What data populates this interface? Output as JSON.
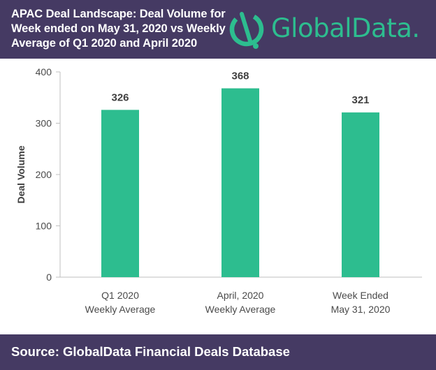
{
  "header": {
    "title_lines": [
      "APAC Deal Landscape: Deal Volume for",
      "Week ended on May 31, 2020 vs Weekly",
      "Average of Q1 2020 and April 2020"
    ],
    "logo_text": "GlobalData.",
    "logo_icon": "globaldata-logo-icon",
    "background_color": "#453a63",
    "accent_color": "#2dbd8f"
  },
  "footer": {
    "source": "Source: GlobalData Financial Deals Database"
  },
  "chart_data": {
    "type": "bar",
    "title": "APAC Deal Landscape: Deal Volume for Week ended on May 31, 2020 vs Weekly Average of Q1 2020 and April 2020",
    "categories": [
      [
        "Q1 2020",
        "Weekly Average"
      ],
      [
        "April, 2020",
        "Weekly Average"
      ],
      [
        "Week Ended",
        "May 31, 2020"
      ]
    ],
    "values": [
      326,
      368,
      321
    ],
    "data_labels": [
      "326",
      "368",
      "321"
    ],
    "ylabel": "Deal Volume",
    "xlabel": "",
    "ylim": [
      0,
      400
    ],
    "yticks": [
      0,
      100,
      200,
      300,
      400
    ],
    "grid": false,
    "legend": "none",
    "bar_color": "#2dbd8f"
  }
}
